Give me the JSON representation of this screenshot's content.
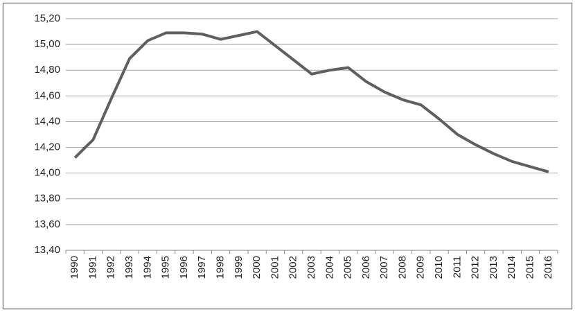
{
  "chart_data": {
    "type": "line",
    "categories": [
      "1990",
      "1991",
      "1992",
      "1993",
      "1994",
      "1995",
      "1996",
      "1997",
      "1998",
      "1999",
      "2000",
      "2001",
      "2002",
      "2003",
      "2004",
      "2005",
      "2006",
      "2007",
      "2008",
      "2009",
      "2010",
      "2011",
      "2012",
      "2013",
      "2014",
      "2015",
      "2016"
    ],
    "series": [
      {
        "color": "#5f5f5f",
        "values": [
          14.12,
          14.26,
          14.58,
          14.89,
          15.03,
          15.09,
          15.09,
          15.08,
          15.04,
          15.07,
          15.1,
          14.99,
          14.88,
          14.77,
          14.8,
          14.82,
          14.71,
          14.63,
          14.57,
          14.53,
          14.42,
          14.3,
          14.22,
          14.15,
          14.09,
          14.05,
          14.01
        ]
      }
    ],
    "ylim": [
      13.4,
      15.2
    ],
    "yticks": [
      {
        "value": 13.4,
        "label": "13,40"
      },
      {
        "value": 13.6,
        "label": "13,60"
      },
      {
        "value": 13.8,
        "label": "13,80"
      },
      {
        "value": 14.0,
        "label": "14,00"
      },
      {
        "value": 14.2,
        "label": "14,20"
      },
      {
        "value": 14.4,
        "label": "14,40"
      },
      {
        "value": 14.6,
        "label": "14,60"
      },
      {
        "value": 14.8,
        "label": "14,80"
      },
      {
        "value": 15.0,
        "label": "15,00"
      },
      {
        "value": 15.2,
        "label": "15,20"
      }
    ],
    "grid": true
  }
}
